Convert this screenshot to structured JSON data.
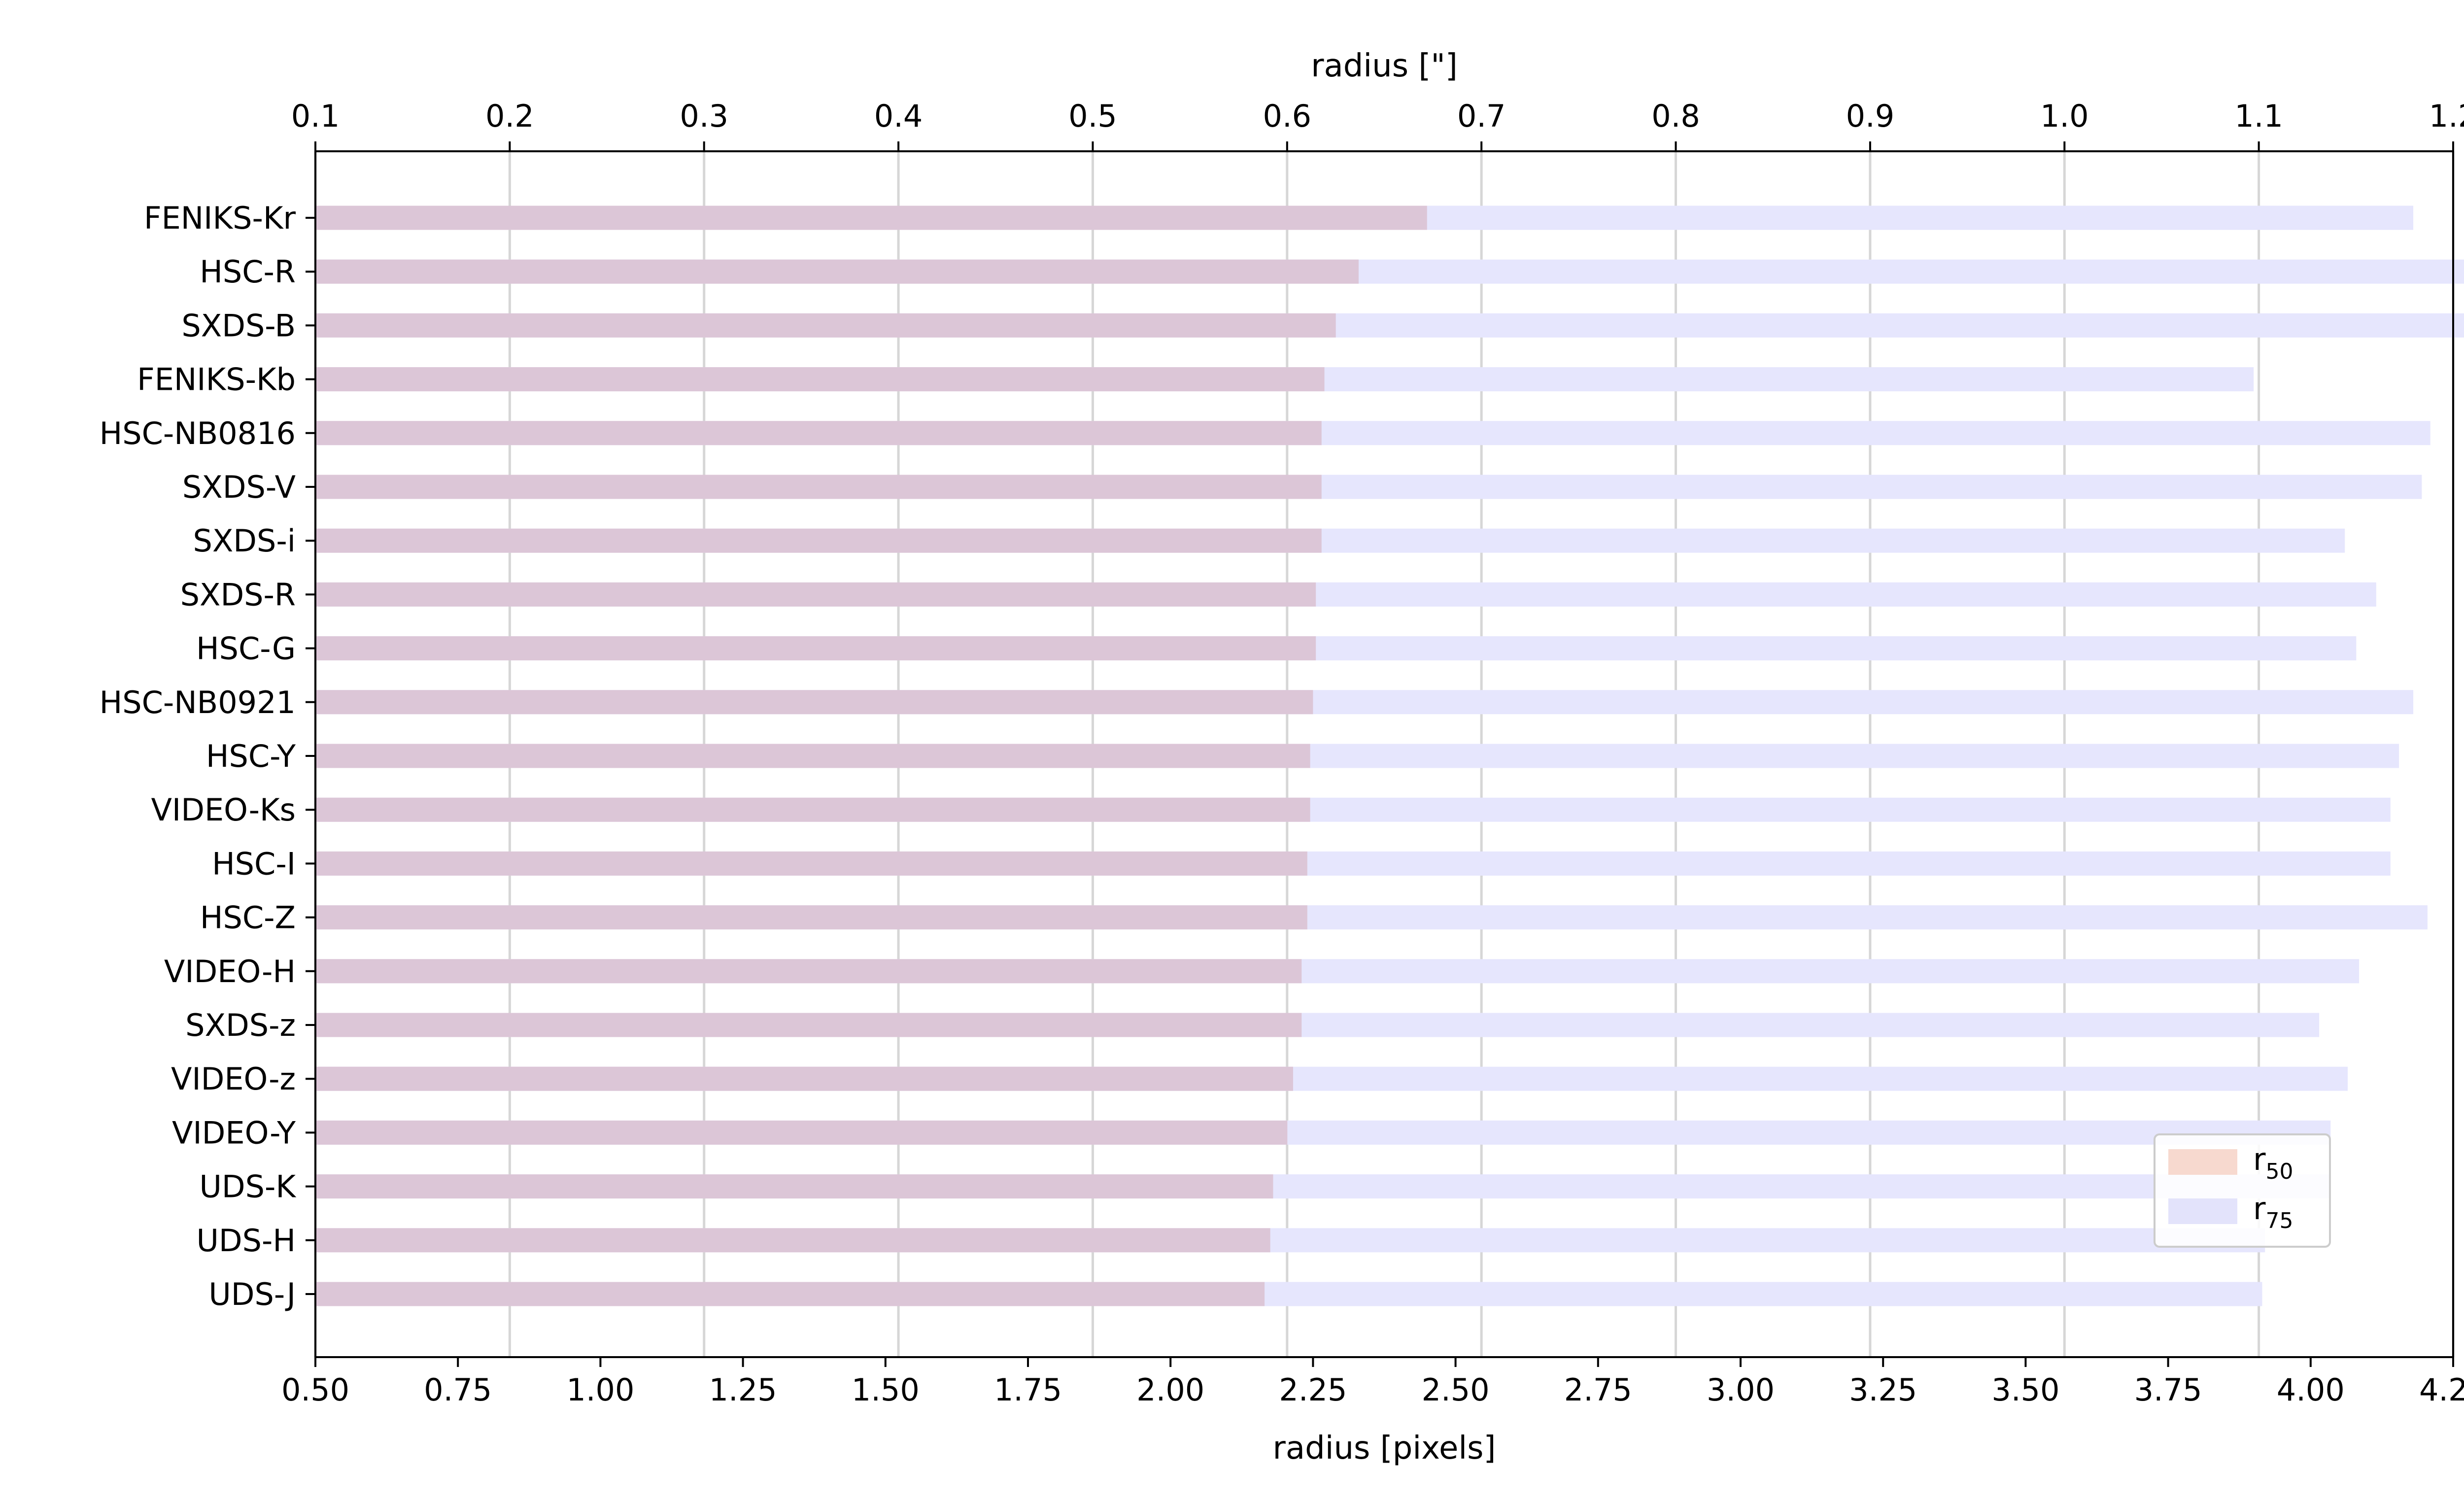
{
  "chart_data": {
    "type": "bar",
    "orientation": "horizontal",
    "categories": [
      "FENIKS-Kr",
      "HSC-R",
      "SXDS-B",
      "FENIKS-Kb",
      "HSC-NB0816",
      "SXDS-V",
      "SXDS-i",
      "SXDS-R",
      "HSC-G",
      "HSC-NB0921",
      "HSC-Y",
      "VIDEO-Ks",
      "HSC-I",
      "HSC-Z",
      "VIDEO-H",
      "SXDS-z",
      "VIDEO-z",
      "VIDEO-Y",
      "UDS-K",
      "UDS-H",
      "UDS-J"
    ],
    "series": [
      {
        "name": "r50",
        "color": "#f7d9cf",
        "values": [
          2.45,
          2.33,
          2.29,
          2.27,
          2.265,
          2.265,
          2.265,
          2.255,
          2.255,
          2.25,
          2.245,
          2.245,
          2.24,
          2.24,
          2.23,
          2.23,
          2.215,
          2.205,
          2.18,
          2.175,
          2.165
        ]
      },
      {
        "name": "r75",
        "color": "#e3e3fb",
        "values": [
          4.18,
          4.27,
          4.28,
          3.9,
          4.21,
          4.195,
          4.06,
          4.115,
          4.08,
          4.18,
          4.155,
          4.14,
          4.14,
          4.205,
          4.085,
          4.015,
          4.065,
          4.035,
          4.035,
          3.92,
          3.915
        ]
      }
    ],
    "xlabel": "radius [pixels]",
    "xlim": [
      0.5,
      4.25
    ],
    "x_ticks": [
      "0.50",
      "0.75",
      "1.00",
      "1.25",
      "1.50",
      "1.75",
      "2.00",
      "2.25",
      "2.50",
      "2.75",
      "3.00",
      "3.25",
      "3.50",
      "3.75",
      "4.00",
      "4.25"
    ],
    "top_xlabel": "radius [\"]",
    "top_xlim": [
      0.1,
      1.2
    ],
    "top_x_ticks": [
      "0.1",
      "0.2",
      "0.3",
      "0.4",
      "0.5",
      "0.6",
      "0.7",
      "0.8",
      "0.9",
      "1.0",
      "1.1",
      "1.2"
    ],
    "grid": "vertical lines at top-axis ticks",
    "legend": {
      "placement": "lower-right",
      "entries": [
        {
          "base": "r",
          "sub": "50"
        },
        {
          "base": "r",
          "sub": "75"
        }
      ]
    }
  }
}
